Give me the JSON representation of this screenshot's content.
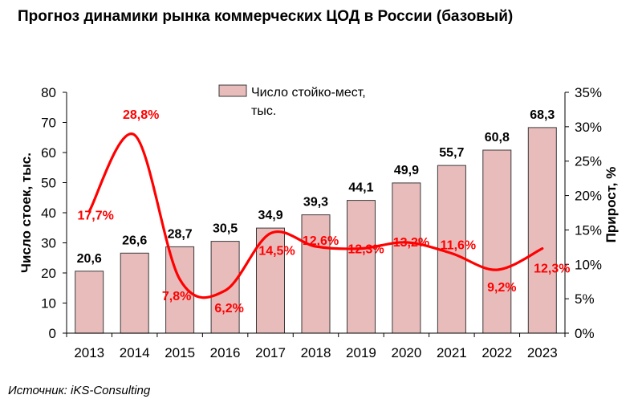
{
  "chart_data": {
    "type": "bar",
    "title": "Прогноз динамики рынка коммерческих ЦОД в России (базовый)",
    "categories": [
      "2013",
      "2014",
      "2015",
      "2016",
      "2017",
      "2018",
      "2019",
      "2020",
      "2021",
      "2022",
      "2023"
    ],
    "series": [
      {
        "name": "Число стойко-мест, тыс.",
        "type": "bar",
        "axis": "left",
        "values": [
          20.6,
          26.6,
          28.7,
          30.5,
          34.9,
          39.3,
          44.1,
          49.9,
          55.7,
          60.8,
          68.3
        ],
        "labels": [
          "20,6",
          "26,6",
          "28,7",
          "30,5",
          "34,9",
          "39,3",
          "44,1",
          "49,9",
          "55,7",
          "60,8",
          "68,3"
        ]
      },
      {
        "type": "line",
        "axis": "right",
        "smooth": true,
        "values": [
          17.7,
          28.8,
          7.8,
          6.2,
          14.5,
          12.6,
          12.3,
          13.2,
          11.6,
          9.2,
          12.3
        ],
        "labels": [
          "17,7%",
          "28,8%",
          "7,8%",
          "6,2%",
          "14,5%",
          "12,6%",
          "12,3%",
          "13,2%",
          "11,6%",
          "9,2%",
          "12,3%"
        ]
      }
    ],
    "ylabel": "Число стоек, тыс.",
    "y2label": "Прирост, %",
    "ylim": [
      0,
      80
    ],
    "y2lim": [
      0,
      35
    ],
    "yticks": [
      "0",
      "10",
      "20",
      "30",
      "40",
      "50",
      "60",
      "70",
      "80"
    ],
    "y2ticks": [
      "0%",
      "5%",
      "10%",
      "15%",
      "20%",
      "25%",
      "30%",
      "35%"
    ],
    "legend": {
      "text_line1": "Число стойко-мест,",
      "text_line2": "тыс.",
      "placement": "top-center"
    },
    "colors": {
      "bar_fill": "#e9bcbc",
      "bar_stroke": "#3a3a3a",
      "line": "#ff0000",
      "line_label": "#ff0000"
    },
    "grid": false
  },
  "source": "Источник: iKS-Consulting"
}
